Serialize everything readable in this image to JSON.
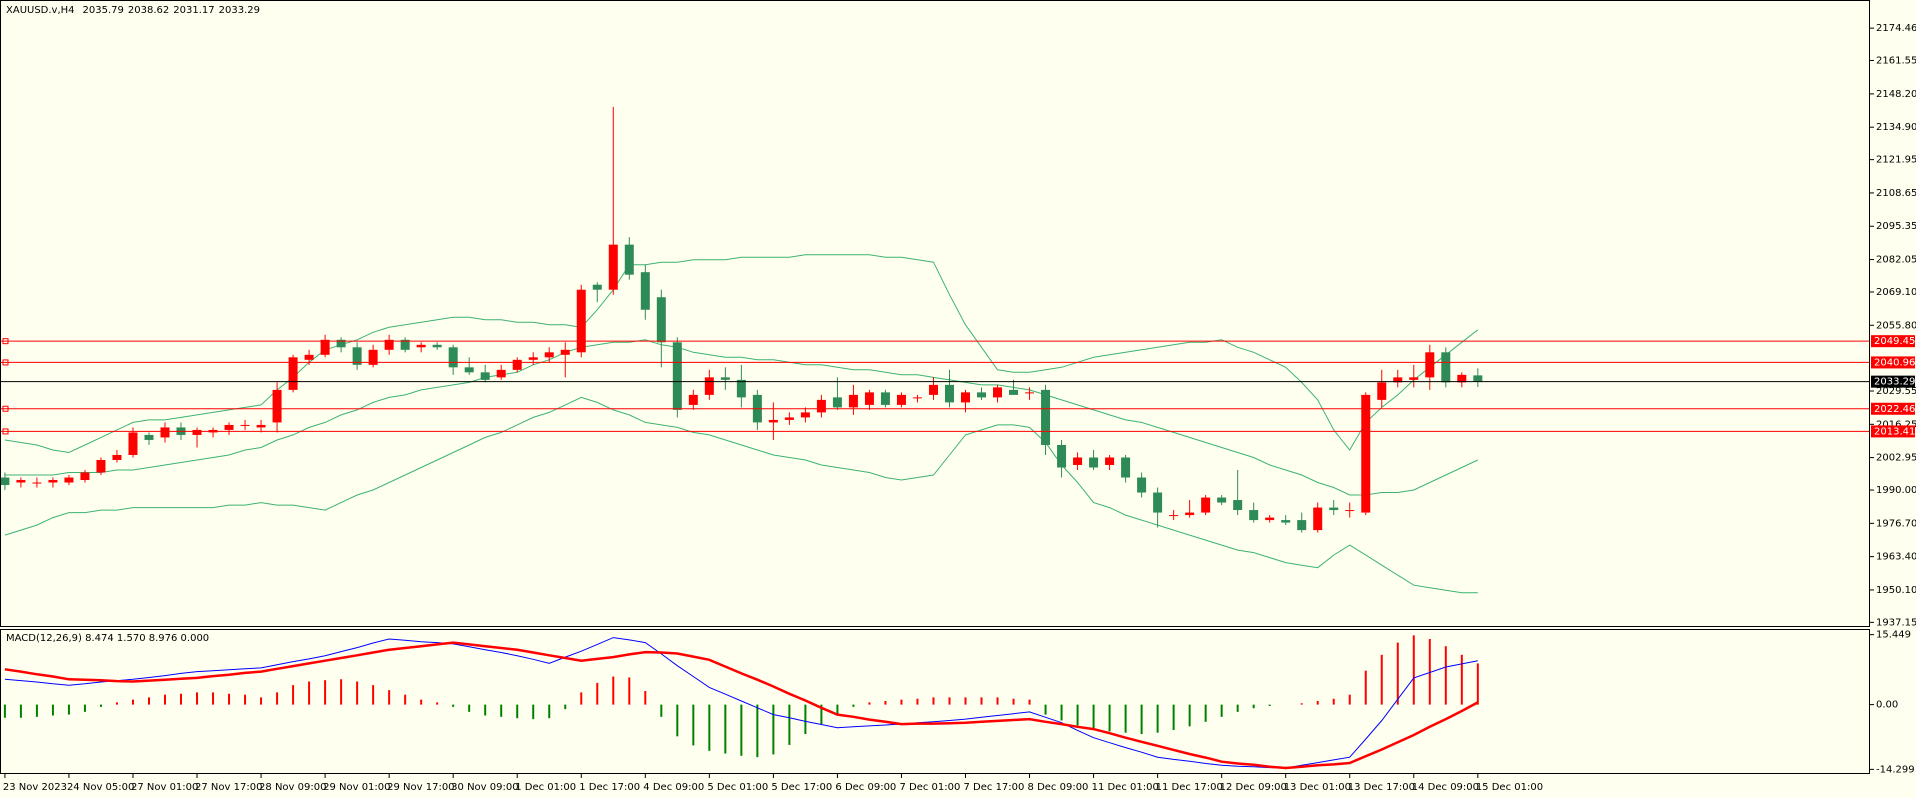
{
  "chart_data": [
    {
      "type": "candlestick",
      "title": "XAUUSD.v,H4",
      "categories": [
        "23 Nov 2023",
        null,
        null,
        null,
        "24 Nov 05:00",
        null,
        null,
        null,
        "27 Nov 01:00",
        null,
        null,
        null,
        "27 Nov 17:00",
        null,
        null,
        null,
        "28 Nov 09:00",
        null,
        null,
        null,
        "29 Nov 01:00",
        null,
        null,
        null,
        "29 Nov 17:00",
        null,
        null,
        null,
        "30 Nov 09:00",
        null,
        null,
        null,
        "1 Dec 01:00",
        null,
        null,
        null,
        "1 Dec 17:00",
        null,
        null,
        null,
        "4 Dec 09:00",
        null,
        null,
        null,
        "5 Dec 01:00",
        null,
        null,
        null,
        "5 Dec 17:00",
        null,
        null,
        null,
        "6 Dec 09:00",
        null,
        null,
        null,
        "7 Dec 01:00",
        null,
        null,
        null,
        "7 Dec 17:00",
        null,
        null,
        null,
        "8 Dec 09:00",
        null,
        null,
        null,
        "11 Dec 01:00",
        null,
        null,
        null,
        "11 Dec 17:00",
        null,
        null,
        null,
        "12 Dec 09:00",
        null,
        null,
        null,
        "13 Dec 01:00",
        null,
        null,
        null,
        "13 Dec 17:00",
        null,
        null,
        null,
        "14 Dec 09:00",
        null,
        null,
        null,
        "15 Dec 01:00"
      ],
      "open": [
        1995,
        1993,
        1993,
        1993,
        1993,
        1994,
        1997,
        2002,
        2004,
        2012,
        2011,
        2015,
        2012,
        2013,
        2014,
        2016,
        2015,
        2017,
        2030,
        2042,
        2044,
        2050,
        2047,
        2040,
        2046,
        2050,
        2047,
        2048,
        2047,
        2039,
        2037,
        2035,
        2038,
        2042,
        2043,
        2044,
        2045,
        2072,
        2070,
        2088,
        2077,
        2067,
        2049,
        2024,
        2028,
        2035,
        2034,
        2028,
        2017,
        2018,
        2019,
        2021,
        2027,
        2023,
        2024,
        2029,
        2024,
        2027,
        2028,
        2032,
        2025,
        2029,
        2027,
        2030,
        2029,
        2030,
        2008,
        2000,
        2003,
        2000,
        2003,
        1995,
        1989,
        1980,
        1980,
        1981,
        1987,
        1986,
        1982,
        1978,
        1978,
        1978,
        1974,
        1983,
        1982,
        1981,
        2026,
        2033,
        2034,
        2035,
        2045,
        2033,
        2035.79
      ],
      "high": [
        1997,
        1995,
        1995,
        1995,
        1996,
        1998,
        2003,
        2006,
        2015,
        2013,
        2017,
        2017,
        2015,
        2015,
        2017,
        2018,
        2018,
        2033,
        2044,
        2046,
        2052,
        2051,
        2049,
        2048,
        2052,
        2051,
        2049,
        2049,
        2048,
        2043,
        2040,
        2040,
        2043,
        2045,
        2047,
        2049,
        2072,
        2073,
        2143,
        2091,
        2080,
        2070,
        2051,
        2030,
        2038,
        2039,
        2040,
        2030,
        2025,
        2021,
        2023,
        2028,
        2035,
        2032,
        2030,
        2030,
        2029,
        2028,
        2035,
        2038,
        2030,
        2031,
        2032,
        2034,
        2031,
        2032,
        2010,
        2005,
        2006,
        2004,
        2004,
        1997,
        1991,
        1982,
        1986,
        1988,
        1988,
        1998,
        1985,
        1980,
        1980,
        1981,
        1985,
        1986,
        1985,
        2029,
        2038,
        2038,
        2040,
        2048,
        2047,
        2037,
        2038.62
      ],
      "low": [
        1990,
        1991,
        1991,
        1991,
        1992,
        1993,
        1996,
        2001,
        2003,
        2008,
        2009,
        2010,
        2007,
        2011,
        2012,
        2014,
        2013,
        2013,
        2029,
        2040,
        2043,
        2045,
        2038,
        2039,
        2044,
        2045,
        2045,
        2046,
        2036,
        2036,
        2033,
        2034,
        2037,
        2040,
        2041,
        2035,
        2043,
        2065,
        2068,
        2074,
        2058,
        2039,
        2019,
        2022,
        2026,
        2030,
        2023,
        2014,
        2010,
        2016,
        2017,
        2019,
        2022,
        2020,
        2022,
        2023,
        2023,
        2025,
        2026,
        2023,
        2021,
        2026,
        2025,
        2028,
        2026,
        2004,
        1995,
        1998,
        1998,
        1998,
        1993,
        1987,
        1975,
        1978,
        1979,
        1980,
        1984,
        1980,
        1977,
        1977,
        1976,
        1973,
        1973,
        1980,
        1979,
        1980,
        2023,
        2031,
        2031,
        2030,
        2031,
        2031,
        2031.17
      ],
      "close": [
        1992,
        1994,
        1993,
        1994,
        1995,
        1997,
        2002,
        2004,
        2013,
        2010,
        2015,
        2012,
        2014,
        2014,
        2016,
        2016,
        2016,
        2030,
        2043,
        2044,
        2050,
        2047,
        2040,
        2046,
        2050,
        2046,
        2048,
        2047,
        2039,
        2037,
        2034,
        2038,
        2042,
        2043,
        2045,
        2046,
        2070,
        2070,
        2088,
        2076,
        2062,
        2049,
        2022,
        2028,
        2035,
        2034,
        2027,
        2017,
        2018,
        2019,
        2021,
        2026,
        2023,
        2028,
        2029,
        2024,
        2028,
        2027,
        2032,
        2025,
        2029,
        2027,
        2031,
        2028,
        2029,
        2008,
        1999,
        2003,
        1999,
        2003,
        1995,
        1989,
        1981,
        1980,
        1981,
        1987,
        1985,
        1982,
        1978,
        1979,
        1977,
        1974,
        1983,
        1982,
        1982,
        2028,
        2033,
        2035,
        2035,
        2045,
        2033,
        2036,
        2033.29
      ],
      "up_color": "#ff0000",
      "down_color": "#2e8b57",
      "bands": {
        "color": "#3cb371",
        "upper": [
          2010,
          2009,
          2008,
          2006,
          2005,
          2008,
          2011,
          2014,
          2017,
          2018,
          2018,
          2019,
          2020,
          2021,
          2022,
          2023,
          2024,
          2030,
          2035,
          2041,
          2046,
          2048,
          2050,
          2053,
          2055,
          2056,
          2057,
          2058,
          2059,
          2059,
          2058,
          2058,
          2057,
          2057,
          2056,
          2056,
          2055,
          2062,
          2070,
          2080,
          2080,
          2081,
          2081,
          2082,
          2082,
          2082,
          2083,
          2083,
          2083,
          2083,
          2084,
          2084,
          2084,
          2084,
          2084,
          2083,
          2083,
          2082,
          2081,
          2068,
          2056,
          2047,
          2038,
          2037,
          2037,
          2038,
          2039,
          2041,
          2043,
          2044,
          2045,
          2046,
          2047,
          2048,
          2049,
          2049,
          2050,
          2047,
          2045,
          2042,
          2039,
          2033,
          2026,
          2014,
          2006,
          2017,
          2023,
          2028,
          2034,
          2039,
          2044,
          2049,
          2054
        ],
        "middle": [
          1996,
          1996,
          1996,
          1996,
          1997,
          1997,
          1997,
          1998,
          1998,
          1999,
          2000,
          2001,
          2002,
          2003,
          2004,
          2006,
          2007,
          2010,
          2012,
          2015,
          2017,
          2020,
          2022,
          2025,
          2027,
          2028,
          2030,
          2031,
          2032,
          2033,
          2035,
          2036,
          2037,
          2040,
          2042,
          2045,
          2047,
          2048,
          2049,
          2049,
          2050,
          2048,
          2047,
          2045,
          2044,
          2043,
          2043,
          2042,
          2042,
          2041,
          2040,
          2040,
          2039,
          2038,
          2038,
          2037,
          2036,
          2036,
          2035,
          2034,
          2033,
          2032,
          2032,
          2031,
          2030,
          2028,
          2026,
          2024,
          2022,
          2020,
          2018,
          2017,
          2015,
          2013,
          2011,
          2009,
          2007,
          2005,
          2003,
          2000,
          1998,
          1996,
          1993,
          1991,
          1988,
          1988,
          1989,
          1989,
          1990,
          1993,
          1996,
          1999,
          2002
        ],
        "lower": [
          1972,
          1974,
          1976,
          1979,
          1981,
          1981,
          1982,
          1982,
          1983,
          1983,
          1983,
          1983,
          1983,
          1983,
          1984,
          1984,
          1985,
          1984,
          1984,
          1983,
          1982,
          1985,
          1988,
          1990,
          1993,
          1996,
          1999,
          2002,
          2005,
          2008,
          2011,
          2013,
          2016,
          2019,
          2021,
          2024,
          2027,
          2025,
          2022,
          2020,
          2017,
          2016,
          2015,
          2013,
          2012,
          2010,
          2008,
          2006,
          2004,
          2003,
          2002,
          2000,
          1999,
          1998,
          1997,
          1995,
          1994,
          1995,
          1996,
          2004,
          2012,
          2014,
          2016,
          2016,
          2015,
          2009,
          2000,
          1993,
          1985,
          1983,
          1980,
          1978,
          1976,
          1974,
          1972,
          1970,
          1968,
          1966,
          1965,
          1963,
          1961,
          1960,
          1959,
          1964,
          1968,
          1964,
          1960,
          1956,
          1952,
          1951,
          1950,
          1949,
          1949
        ]
      },
      "levels": {
        "color": "#ff0000",
        "values": [
          2049.45,
          2040.96,
          2022.46,
          2013.41
        ]
      },
      "price_line_color": "#000000",
      "ylim": [
        1935.7,
        2185.7
      ],
      "yticks": [
        2174.46,
        2161.55,
        {
          "value": 2148.2,
          "label": "2148.20"
        },
        {
          "value": 2134.9,
          "label": "2134.90"
        },
        2121.95,
        2108.65,
        2095.35,
        2082.05,
        {
          "value": 2069.1,
          "label": "2069.10"
        },
        {
          "value": 2055.8,
          "label": "2055.80"
        },
        2029.55,
        2016.25,
        2002.95,
        {
          "value": 1990,
          "label": "1990.00"
        },
        {
          "value": 1976.7,
          "label": "1976.70"
        },
        {
          "value": 1963.4,
          "label": "1963.40"
        },
        {
          "value": 1950.1,
          "label": "1950.10"
        },
        1937.15
      ]
    },
    {
      "type": "macd",
      "title": "MACD(12,26,9) 8.474 1.570 8.976 0.000",
      "histogram": {
        "up_color": "#ff0000",
        "down_color": "#008000",
        "values": [
          -2.9,
          -2.9,
          -2.7,
          -2.4,
          -2.2,
          -1.6,
          -0.5,
          0.5,
          1.1,
          1.6,
          2.2,
          2.4,
          2.7,
          2.7,
          2.4,
          2.2,
          1.6,
          2.7,
          4.3,
          5.1,
          5.4,
          5.6,
          5.1,
          4.3,
          3.2,
          2.2,
          1.1,
          0.5,
          -0.5,
          -1.6,
          -2.4,
          -2.7,
          -3.0,
          -3.2,
          -3.0,
          -1.0,
          2.7,
          4.8,
          6.2,
          6.0,
          3.0,
          -2.7,
          -7.0,
          -9.0,
          -10.2,
          -10.8,
          -11.3,
          -11.6,
          -11.0,
          -8.9,
          -6.5,
          -4.3,
          -2.2,
          -0.5,
          0.5,
          0.8,
          1.1,
          1.3,
          1.6,
          1.6,
          1.6,
          1.6,
          1.6,
          1.3,
          1.1,
          -2.2,
          -3.5,
          -4.6,
          -5.4,
          -5.9,
          -6.2,
          -6.5,
          -6.2,
          -5.6,
          -4.8,
          -3.8,
          -2.7,
          -1.6,
          -0.8,
          -0.3,
          0.0,
          0.3,
          0.8,
          1.3,
          2.2,
          7.5,
          11.0,
          13.7,
          15.3,
          14.5,
          12.9,
          11.0,
          9.1
        ]
      },
      "main": {
        "color": "#0000ff",
        "values": [
          5.6,
          5.3,
          5.0,
          4.6,
          4.3,
          4.6,
          5.0,
          5.3,
          5.6,
          6.0,
          6.4,
          6.9,
          7.3,
          7.5,
          7.7,
          7.9,
          8.1,
          8.8,
          9.5,
          10.1,
          10.8,
          11.7,
          12.6,
          13.6,
          14.5,
          14.2,
          13.9,
          13.7,
          13.4,
          12.8,
          12.1,
          11.5,
          10.8,
          10.0,
          9.1,
          10.5,
          11.8,
          13.3,
          14.8,
          14.3,
          13.7,
          11.2,
          8.6,
          6.2,
          3.8,
          2.3,
          0.8,
          -0.7,
          -2.2,
          -2.9,
          -3.7,
          -4.4,
          -5.1,
          -4.9,
          -4.7,
          -4.5,
          -4.3,
          -4.0,
          -3.8,
          -3.5,
          -3.2,
          -2.8,
          -2.4,
          -2.0,
          -1.6,
          -2.8,
          -4.0,
          -5.7,
          -7.3,
          -8.4,
          -9.5,
          -10.5,
          -11.6,
          -12.1,
          -12.5,
          -13.0,
          -13.4,
          -13.6,
          -13.7,
          -13.9,
          -14.0,
          -13.4,
          -12.8,
          -12.2,
          -11.6,
          -7.6,
          -3.5,
          1.2,
          5.9,
          7.1,
          8.3,
          9.0,
          9.7
        ]
      },
      "signal": {
        "color": "#ff0000",
        "values": [
          7.8,
          7.3,
          6.7,
          6.2,
          5.6,
          5.5,
          5.4,
          5.2,
          5.1,
          5.3,
          5.5,
          5.7,
          5.9,
          6.3,
          6.6,
          7.0,
          7.3,
          7.9,
          8.5,
          9.1,
          9.7,
          10.3,
          10.9,
          11.5,
          12.1,
          12.5,
          12.9,
          13.3,
          13.7,
          13.3,
          12.9,
          12.5,
          12.1,
          11.5,
          10.9,
          10.3,
          9.7,
          10.1,
          10.5,
          11.1,
          11.6,
          11.5,
          11.3,
          10.6,
          9.9,
          8.4,
          6.9,
          5.5,
          4.0,
          2.4,
          0.9,
          -0.7,
          -2.2,
          -2.7,
          -3.3,
          -3.8,
          -4.3,
          -4.2,
          -4.2,
          -4.1,
          -4.0,
          -3.8,
          -3.6,
          -3.4,
          -3.2,
          -3.8,
          -4.3,
          -4.9,
          -5.4,
          -6.3,
          -7.3,
          -8.2,
          -9.1,
          -10.0,
          -10.9,
          -11.7,
          -12.6,
          -13.0,
          -13.3,
          -13.7,
          -14.0,
          -13.7,
          -13.4,
          -13.2,
          -12.9,
          -11.4,
          -9.9,
          -8.3,
          -6.7,
          -4.9,
          -3.2,
          -1.4,
          0.5
        ]
      },
      "ylim": [
        -15.1,
        16.7
      ],
      "yticks": [
        15.449,
        {
          "value": 0,
          "label": "0.00"
        },
        -14.299
      ]
    }
  ]
}
